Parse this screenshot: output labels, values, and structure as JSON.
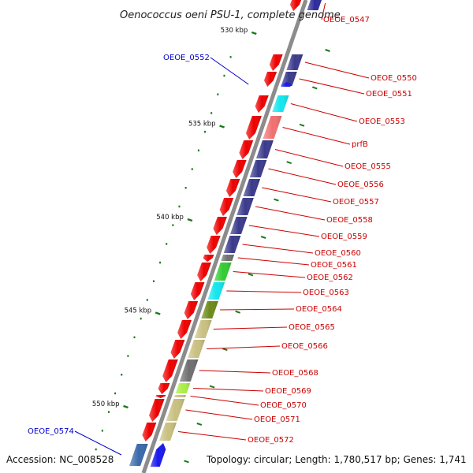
{
  "title": "Oenococcus oeni PSU-1, complete genome",
  "accession": "Accession: NC_008528",
  "topology": "Topology: circular; Length: 1,780,517 bp; Genes: 1,741",
  "colors": {
    "backbone": "#8c8c8c",
    "tick": "#1a7a1a",
    "label_forward": "#cc0000",
    "label_reverse": "#0000cc",
    "gene_red": "#ee0000",
    "gene_blue": "#1818ee"
  },
  "ticks": [
    {
      "kbp": 530,
      "label": "530 kbp"
    },
    {
      "kbp": 535,
      "label": "535 kbp"
    },
    {
      "kbp": 540,
      "label": "540 kbp"
    },
    {
      "kbp": 545,
      "label": "545 kbp"
    },
    {
      "kbp": 550,
      "label": "550 kbp"
    }
  ],
  "genes": [
    {
      "name": "OEOE_0547",
      "strand": "+",
      "cog": "#2c2c9a"
    },
    {
      "name": "OEOE_0550",
      "strand": "+",
      "cog": "#3a3a8c"
    },
    {
      "name": "OEOE_0551",
      "strand": "+",
      "cog": "#3a3a8c"
    },
    {
      "name": "OEOE_0552",
      "strand": "-",
      "cog": ""
    },
    {
      "name": "OEOE_0553",
      "strand": "+",
      "cog": "#12e6ee"
    },
    {
      "name": "prfB",
      "strand": "+",
      "cog": "#f07070"
    },
    {
      "name": "OEOE_0555",
      "strand": "+",
      "cog": "#3a3a8c"
    },
    {
      "name": "OEOE_0556",
      "strand": "+",
      "cog": "#3a3a8c"
    },
    {
      "name": "OEOE_0557",
      "strand": "+",
      "cog": "#3a3a8c"
    },
    {
      "name": "OEOE_0558",
      "strand": "+",
      "cog": "#3a3a8c"
    },
    {
      "name": "OEOE_0559",
      "strand": "+",
      "cog": "#3a3a8c"
    },
    {
      "name": "OEOE_0560",
      "strand": "+",
      "cog": "#3a3a8c"
    },
    {
      "name": "OEOE_0561",
      "strand": "+",
      "cog": "#6f6f6f"
    },
    {
      "name": "OEOE_0562",
      "strand": "+",
      "cog": "#33cc33"
    },
    {
      "name": "OEOE_0563",
      "strand": "+",
      "cog": "#12e6ee"
    },
    {
      "name": "OEOE_0564",
      "strand": "+",
      "cog": "#6e8a1a"
    },
    {
      "name": "OEOE_0565",
      "strand": "+",
      "cog": "#c9bf80"
    },
    {
      "name": "OEOE_0566",
      "strand": "+",
      "cog": "#c9bf80"
    },
    {
      "name": "OEOE_0568",
      "strand": "+",
      "cog": "#6f6f6f"
    },
    {
      "name": "OEOE_0569",
      "strand": "+",
      "cog": "#aaee44"
    },
    {
      "name": "OEOE_0570",
      "strand": "+",
      "cog": "#c9bf80"
    },
    {
      "name": "OEOE_0571",
      "strand": "+",
      "cog": "#c9bf80"
    },
    {
      "name": "OEOE_0572",
      "strand": "+",
      "cog": "#c9bf80"
    },
    {
      "name": "OEOE_0574",
      "strand": "-",
      "cog": "#3a6aaa"
    }
  ]
}
